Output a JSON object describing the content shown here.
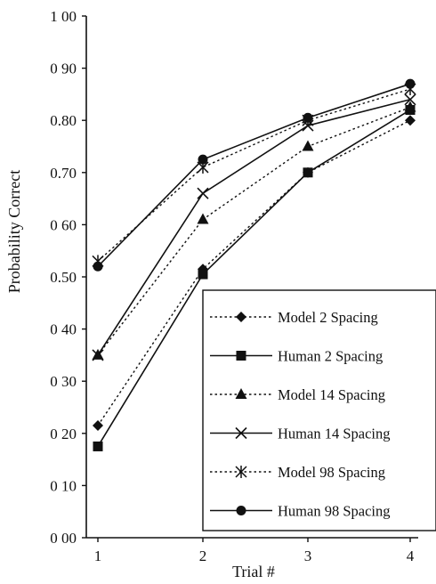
{
  "chart_data": {
    "type": "line",
    "xlabel": "Trial #",
    "ylabel": "Probability Correct",
    "x": [
      1,
      2,
      3,
      4
    ],
    "xticks": [
      "1",
      "2",
      "3",
      "4"
    ],
    "yticks": [
      "0 00",
      "0 10",
      "0 20",
      "0 30",
      "0 40",
      "0.50",
      "0 60",
      "0.70",
      "0.80",
      "0 90",
      "1 00"
    ],
    "ylim": [
      0,
      1
    ],
    "grid": false,
    "legend_position": "bottom-right",
    "series": [
      {
        "name": "Model 2 Spacing",
        "values": [
          0.215,
          0.515,
          0.7,
          0.8
        ],
        "line": "dotted",
        "marker": "diamond"
      },
      {
        "name": "Human 2 Spacing",
        "values": [
          0.175,
          0.505,
          0.7,
          0.82
        ],
        "line": "solid",
        "marker": "square"
      },
      {
        "name": "Model 14 Spacing",
        "values": [
          0.35,
          0.61,
          0.75,
          0.825
        ],
        "line": "dotted",
        "marker": "triangle"
      },
      {
        "name": "Human 14 Spacing",
        "values": [
          0.35,
          0.66,
          0.79,
          0.84
        ],
        "line": "solid",
        "marker": "x"
      },
      {
        "name": "Model 98 Spacing",
        "values": [
          0.53,
          0.71,
          0.8,
          0.86
        ],
        "line": "dotted",
        "marker": "star"
      },
      {
        "name": "Human 98 Spacing",
        "values": [
          0.52,
          0.725,
          0.805,
          0.87
        ],
        "line": "solid",
        "marker": "circle"
      }
    ]
  }
}
